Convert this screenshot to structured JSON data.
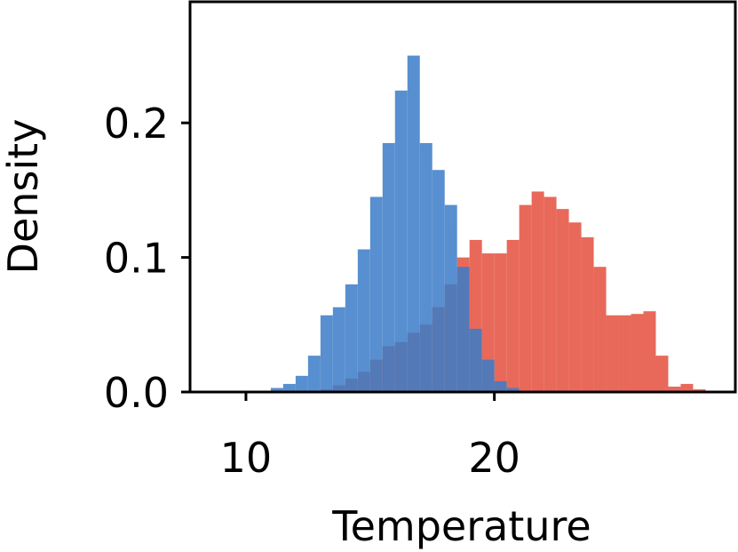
{
  "chart_data": {
    "type": "histogram",
    "xlabel": "Temperature",
    "ylabel": "Density",
    "xlim": [
      7.75,
      29.7
    ],
    "ylim": [
      0,
      0.29
    ],
    "xticks": [
      10,
      20
    ],
    "yticks": [
      {
        "value": 0,
        "label": "0.0"
      },
      0.1,
      0.2
    ],
    "series": [
      {
        "color": "#e8695a",
        "bins": [
          12.5,
          13,
          13.5,
          14,
          14.5,
          15,
          15.5,
          16,
          16.5,
          17,
          17.5,
          18,
          18.5,
          19,
          19.5,
          20,
          20.5,
          21,
          21.5,
          22,
          22.5,
          23,
          23.5,
          24,
          24.5,
          25,
          25.5,
          26,
          26.5,
          27,
          27.5,
          28,
          28.5
        ],
        "values": [
          0.001,
          0.002,
          0.005,
          0.01,
          0.015,
          0.024,
          0.034,
          0.037,
          0.044,
          0.05,
          0.063,
          0.08,
          0.1,
          0.113,
          0.103,
          0.103,
          0.113,
          0.139,
          0.149,
          0.145,
          0.136,
          0.126,
          0.115,
          0.093,
          0.057,
          0.057,
          0.058,
          0.06,
          0.027,
          0.004,
          0.006,
          0.002
        ]
      },
      {
        "color": "#3a7cc8",
        "bins": [
          11,
          11.5,
          12,
          12.5,
          13,
          13.5,
          14,
          14.5,
          15,
          15.5,
          16,
          16.5,
          17,
          17.5,
          18,
          18.5,
          19,
          19.5,
          20,
          20.5,
          21
        ],
        "values": [
          0.003,
          0.006,
          0.012,
          0.027,
          0.057,
          0.063,
          0.08,
          0.106,
          0.145,
          0.185,
          0.224,
          0.25,
          0.185,
          0.165,
          0.139,
          0.093,
          0.047,
          0.024,
          0.008,
          0.003
        ]
      }
    ]
  }
}
